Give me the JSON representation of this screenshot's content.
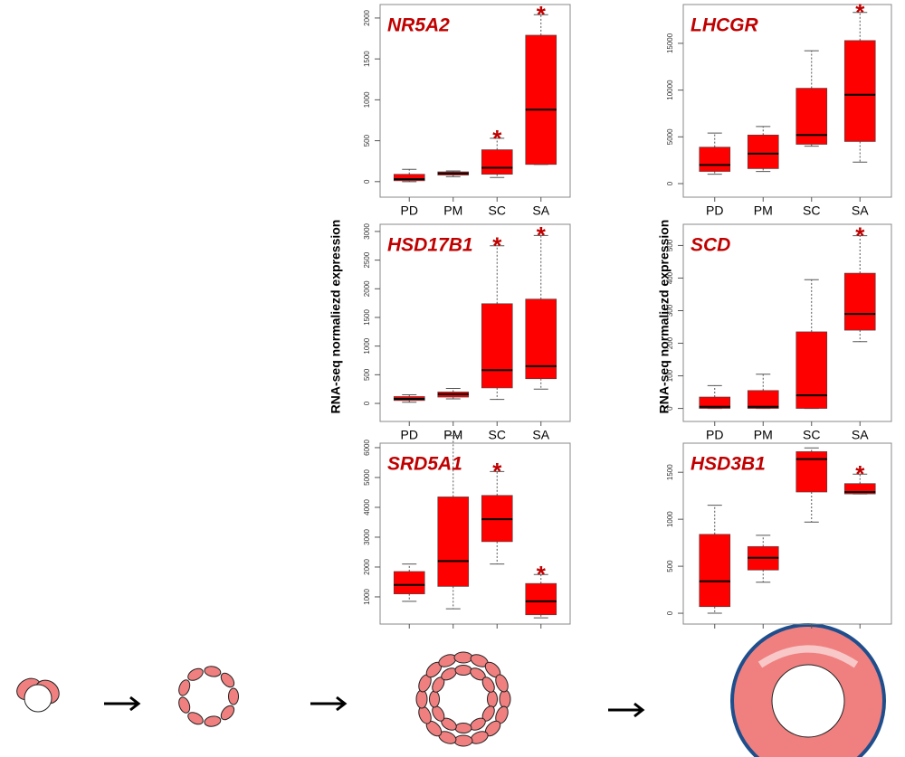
{
  "y_label": "RNA-seq normaliezd expression",
  "chart_data": [
    {
      "type": "box",
      "title": "NR5A2",
      "categories": [
        "PD",
        "PM",
        "SC",
        "SA"
      ],
      "boxes": [
        {
          "min": 0,
          "q1": 10,
          "median": 30,
          "q3": 90,
          "max": 150
        },
        {
          "min": 60,
          "q1": 80,
          "median": 100,
          "q3": 120,
          "max": 130
        },
        {
          "min": 50,
          "q1": 90,
          "median": 170,
          "q3": 390,
          "max": 530
        },
        {
          "min": 210,
          "q1": 210,
          "median": 880,
          "q3": 1790,
          "max": 2040
        }
      ],
      "ylim": [
        -190,
        2165
      ],
      "yticks": [
        0,
        500,
        1000,
        1500,
        2000
      ],
      "color": "#ff0000",
      "annotations": [
        {
          "category": "SC",
          "text": "*"
        },
        {
          "category": "SA",
          "text": "*"
        }
      ]
    },
    {
      "type": "box",
      "title": "LHCGR",
      "categories": [
        "PD",
        "PM",
        "SC",
        "SA"
      ],
      "boxes": [
        {
          "min": 1000,
          "q1": 1300,
          "median": 2000,
          "q3": 3900,
          "max": 5400
        },
        {
          "min": 1300,
          "q1": 1600,
          "median": 3200,
          "q3": 5200,
          "max": 6100
        },
        {
          "min": 4000,
          "q1": 4200,
          "median": 5200,
          "q3": 10200,
          "max": 14200
        },
        {
          "min": 2300,
          "q1": 4500,
          "median": 9500,
          "q3": 15300,
          "max": 18300
        }
      ],
      "ylim": [
        -1450,
        19150
      ],
      "yticks": [
        0,
        5000,
        10000,
        15000
      ],
      "color": "#ff0000",
      "annotations": [
        {
          "category": "SA",
          "text": "*"
        }
      ]
    },
    {
      "type": "box",
      "title": "HSD17B1",
      "categories": [
        "PD",
        "PM",
        "SC",
        "SA"
      ],
      "boxes": [
        {
          "min": 20,
          "q1": 50,
          "median": 80,
          "q3": 120,
          "max": 150
        },
        {
          "min": 80,
          "q1": 110,
          "median": 160,
          "q3": 200,
          "max": 260
        },
        {
          "min": 70,
          "q1": 270,
          "median": 580,
          "q3": 1740,
          "max": 2750
        },
        {
          "min": 250,
          "q1": 430,
          "median": 650,
          "q3": 1820,
          "max": 2930
        }
      ],
      "ylim": [
        -315,
        3125
      ],
      "yticks": [
        0,
        500,
        1000,
        1500,
        2000,
        2500,
        3000
      ],
      "color": "#ff0000",
      "annotations": [
        {
          "category": "SC",
          "text": "*"
        },
        {
          "category": "SA",
          "text": "*"
        }
      ]
    },
    {
      "type": "box",
      "title": "SCD",
      "categories": [
        "PD",
        "PM",
        "SC",
        "SA"
      ],
      "boxes": [
        {
          "min": 0,
          "q1": 0,
          "median": 5,
          "q3": 35,
          "max": 70
        },
        {
          "min": 0,
          "q1": 0,
          "median": 5,
          "q3": 55,
          "max": 105
        },
        {
          "min": 0,
          "q1": 0,
          "median": 40,
          "q3": 235,
          "max": 395
        },
        {
          "min": 205,
          "q1": 240,
          "median": 290,
          "q3": 415,
          "max": 530
        }
      ],
      "ylim": [
        -40,
        565
      ],
      "yticks": [
        0,
        100,
        200,
        300,
        400,
        500
      ],
      "color": "#ff0000",
      "annotations": [
        {
          "category": "SA",
          "text": "*"
        }
      ]
    },
    {
      "type": "box",
      "title": "SRD5A1",
      "boxes": [
        {
          "min": 850,
          "q1": 1100,
          "median": 1400,
          "q3": 1850,
          "max": 2100
        },
        {
          "min": 600,
          "q1": 1350,
          "median": 2200,
          "q3": 4350,
          "max": 6400
        },
        {
          "min": 2100,
          "q1": 2850,
          "median": 3600,
          "q3": 4400,
          "max": 5200
        },
        {
          "min": 300,
          "q1": 400,
          "median": 850,
          "q3": 1450,
          "max": 1750
        }
      ],
      "ylim": [
        90,
        6150
      ],
      "yticks": [
        1000,
        2000,
        3000,
        4000,
        5000,
        6000
      ],
      "color": "#ff0000",
      "annotations": [
        {
          "position": 2,
          "text": "*"
        },
        {
          "position": 3,
          "text": "*"
        }
      ]
    },
    {
      "type": "box",
      "title": "HSD3B1",
      "boxes": [
        {
          "min": 0,
          "q1": 70,
          "median": 340,
          "q3": 840,
          "max": 1150
        },
        {
          "min": 330,
          "q1": 460,
          "median": 590,
          "q3": 710,
          "max": 830
        },
        {
          "min": 970,
          "q1": 1290,
          "median": 1640,
          "q3": 1720,
          "max": 1760
        },
        {
          "min": 1270,
          "q1": 1270,
          "median": 1290,
          "q3": 1380,
          "max": 1480
        }
      ],
      "ylim": [
        -115,
        1810
      ],
      "yticks": [
        0,
        500,
        1000,
        1500
      ],
      "color": "#ff0000",
      "annotations": [
        {
          "position": 3,
          "text": "*"
        }
      ]
    }
  ]
}
